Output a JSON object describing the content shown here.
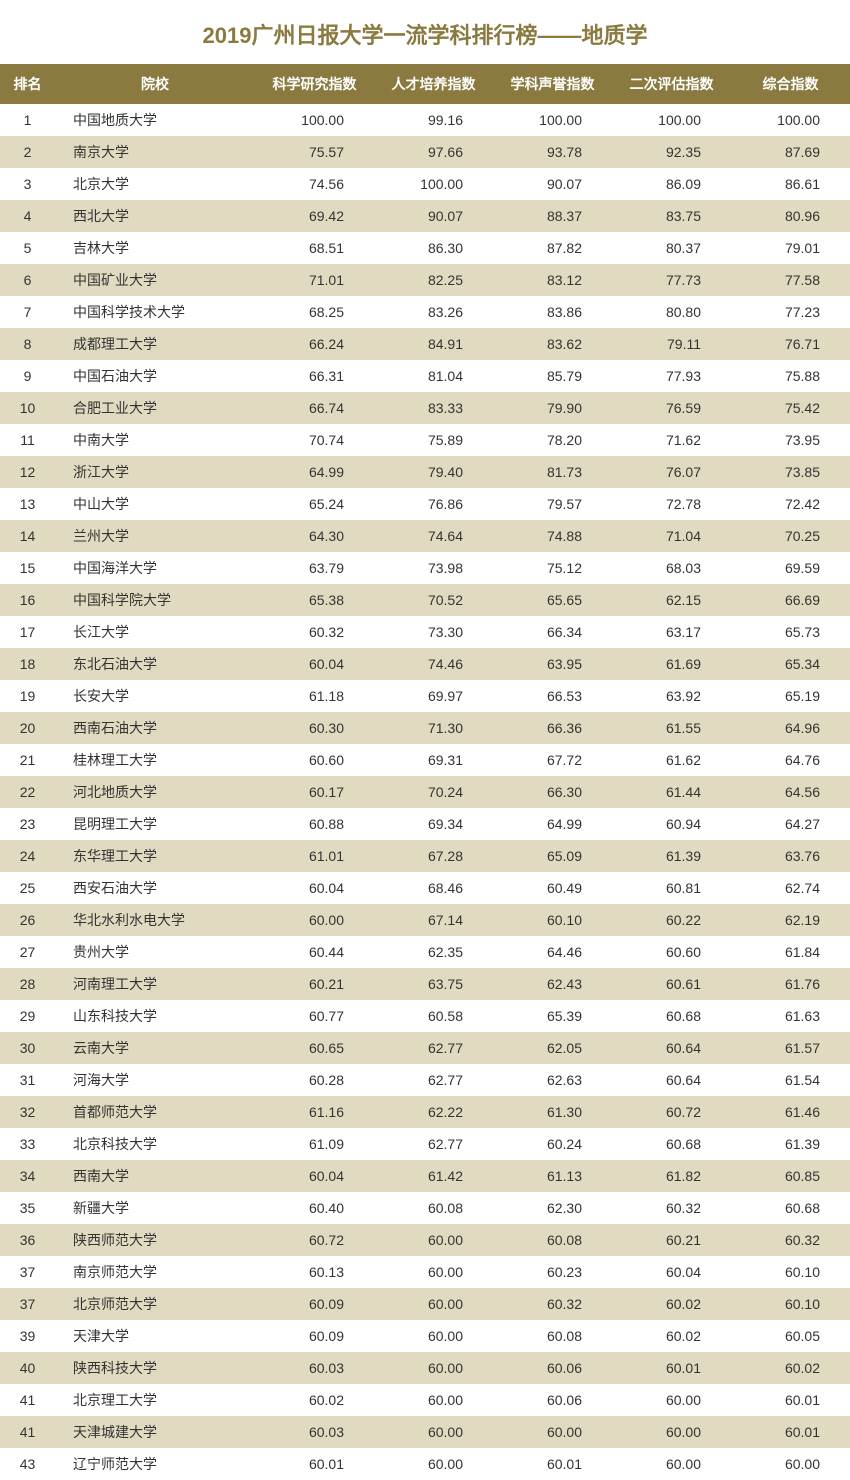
{
  "title": "2019广州日报大学一流学科排行榜——地质学",
  "columns": [
    "排名",
    "院校",
    "科学研究指数",
    "人才培养指数",
    "学科声誉指数",
    "二次评估指数",
    "综合指数"
  ],
  "rows": [
    [
      "1",
      "中国地质大学",
      "100.00",
      "99.16",
      "100.00",
      "100.00",
      "100.00"
    ],
    [
      "2",
      "南京大学",
      "75.57",
      "97.66",
      "93.78",
      "92.35",
      "87.69"
    ],
    [
      "3",
      "北京大学",
      "74.56",
      "100.00",
      "90.07",
      "86.09",
      "86.61"
    ],
    [
      "4",
      "西北大学",
      "69.42",
      "90.07",
      "88.37",
      "83.75",
      "80.96"
    ],
    [
      "5",
      "吉林大学",
      "68.51",
      "86.30",
      "87.82",
      "80.37",
      "79.01"
    ],
    [
      "6",
      "中国矿业大学",
      "71.01",
      "82.25",
      "83.12",
      "77.73",
      "77.58"
    ],
    [
      "7",
      "中国科学技术大学",
      "68.25",
      "83.26",
      "83.86",
      "80.80",
      "77.23"
    ],
    [
      "8",
      "成都理工大学",
      "66.24",
      "84.91",
      "83.62",
      "79.11",
      "76.71"
    ],
    [
      "9",
      "中国石油大学",
      "66.31",
      "81.04",
      "85.79",
      "77.93",
      "75.88"
    ],
    [
      "10",
      "合肥工业大学",
      "66.74",
      "83.33",
      "79.90",
      "76.59",
      "75.42"
    ],
    [
      "11",
      "中南大学",
      "70.74",
      "75.89",
      "78.20",
      "71.62",
      "73.95"
    ],
    [
      "12",
      "浙江大学",
      "64.99",
      "79.40",
      "81.73",
      "76.07",
      "73.85"
    ],
    [
      "13",
      "中山大学",
      "65.24",
      "76.86",
      "79.57",
      "72.78",
      "72.42"
    ],
    [
      "14",
      "兰州大学",
      "64.30",
      "74.64",
      "74.88",
      "71.04",
      "70.25"
    ],
    [
      "15",
      "中国海洋大学",
      "63.79",
      "73.98",
      "75.12",
      "68.03",
      "69.59"
    ],
    [
      "16",
      "中国科学院大学",
      "65.38",
      "70.52",
      "65.65",
      "62.15",
      "66.69"
    ],
    [
      "17",
      "长江大学",
      "60.32",
      "73.30",
      "66.34",
      "63.17",
      "65.73"
    ],
    [
      "18",
      "东北石油大学",
      "60.04",
      "74.46",
      "63.95",
      "61.69",
      "65.34"
    ],
    [
      "19",
      "长安大学",
      "61.18",
      "69.97",
      "66.53",
      "63.92",
      "65.19"
    ],
    [
      "20",
      "西南石油大学",
      "60.30",
      "71.30",
      "66.36",
      "61.55",
      "64.96"
    ],
    [
      "21",
      "桂林理工大学",
      "60.60",
      "69.31",
      "67.72",
      "61.62",
      "64.76"
    ],
    [
      "22",
      "河北地质大学",
      "60.17",
      "70.24",
      "66.30",
      "61.44",
      "64.56"
    ],
    [
      "23",
      "昆明理工大学",
      "60.88",
      "69.34",
      "64.99",
      "60.94",
      "64.27"
    ],
    [
      "24",
      "东华理工大学",
      "61.01",
      "67.28",
      "65.09",
      "61.39",
      "63.76"
    ],
    [
      "25",
      "西安石油大学",
      "60.04",
      "68.46",
      "60.49",
      "60.81",
      "62.74"
    ],
    [
      "26",
      "华北水利水电大学",
      "60.00",
      "67.14",
      "60.10",
      "60.22",
      "62.19"
    ],
    [
      "27",
      "贵州大学",
      "60.44",
      "62.35",
      "64.46",
      "60.60",
      "61.84"
    ],
    [
      "28",
      "河南理工大学",
      "60.21",
      "63.75",
      "62.43",
      "60.61",
      "61.76"
    ],
    [
      "29",
      "山东科技大学",
      "60.77",
      "60.58",
      "65.39",
      "60.68",
      "61.63"
    ],
    [
      "30",
      "云南大学",
      "60.65",
      "62.77",
      "62.05",
      "60.64",
      "61.57"
    ],
    [
      "31",
      "河海大学",
      "60.28",
      "62.77",
      "62.63",
      "60.64",
      "61.54"
    ],
    [
      "32",
      "首都师范大学",
      "61.16",
      "62.22",
      "61.30",
      "60.72",
      "61.46"
    ],
    [
      "33",
      "北京科技大学",
      "61.09",
      "62.77",
      "60.24",
      "60.68",
      "61.39"
    ],
    [
      "34",
      "西南大学",
      "60.04",
      "61.42",
      "61.13",
      "61.82",
      "60.85"
    ],
    [
      "35",
      "新疆大学",
      "60.40",
      "60.08",
      "62.30",
      "60.32",
      "60.68"
    ],
    [
      "36",
      "陕西师范大学",
      "60.72",
      "60.00",
      "60.08",
      "60.21",
      "60.32"
    ],
    [
      "37",
      "南京师范大学",
      "60.13",
      "60.00",
      "60.23",
      "60.04",
      "60.10"
    ],
    [
      "37",
      "北京师范大学",
      "60.09",
      "60.00",
      "60.32",
      "60.02",
      "60.10"
    ],
    [
      "39",
      "天津大学",
      "60.09",
      "60.00",
      "60.08",
      "60.02",
      "60.05"
    ],
    [
      "40",
      "陕西科技大学",
      "60.03",
      "60.00",
      "60.06",
      "60.01",
      "60.02"
    ],
    [
      "41",
      "北京理工大学",
      "60.02",
      "60.00",
      "60.06",
      "60.00",
      "60.01"
    ],
    [
      "41",
      "天津城建大学",
      "60.03",
      "60.00",
      "60.00",
      "60.00",
      "60.01"
    ],
    [
      "43",
      "辽宁师范大学",
      "60.01",
      "60.00",
      "60.01",
      "60.00",
      "60.00"
    ]
  ]
}
